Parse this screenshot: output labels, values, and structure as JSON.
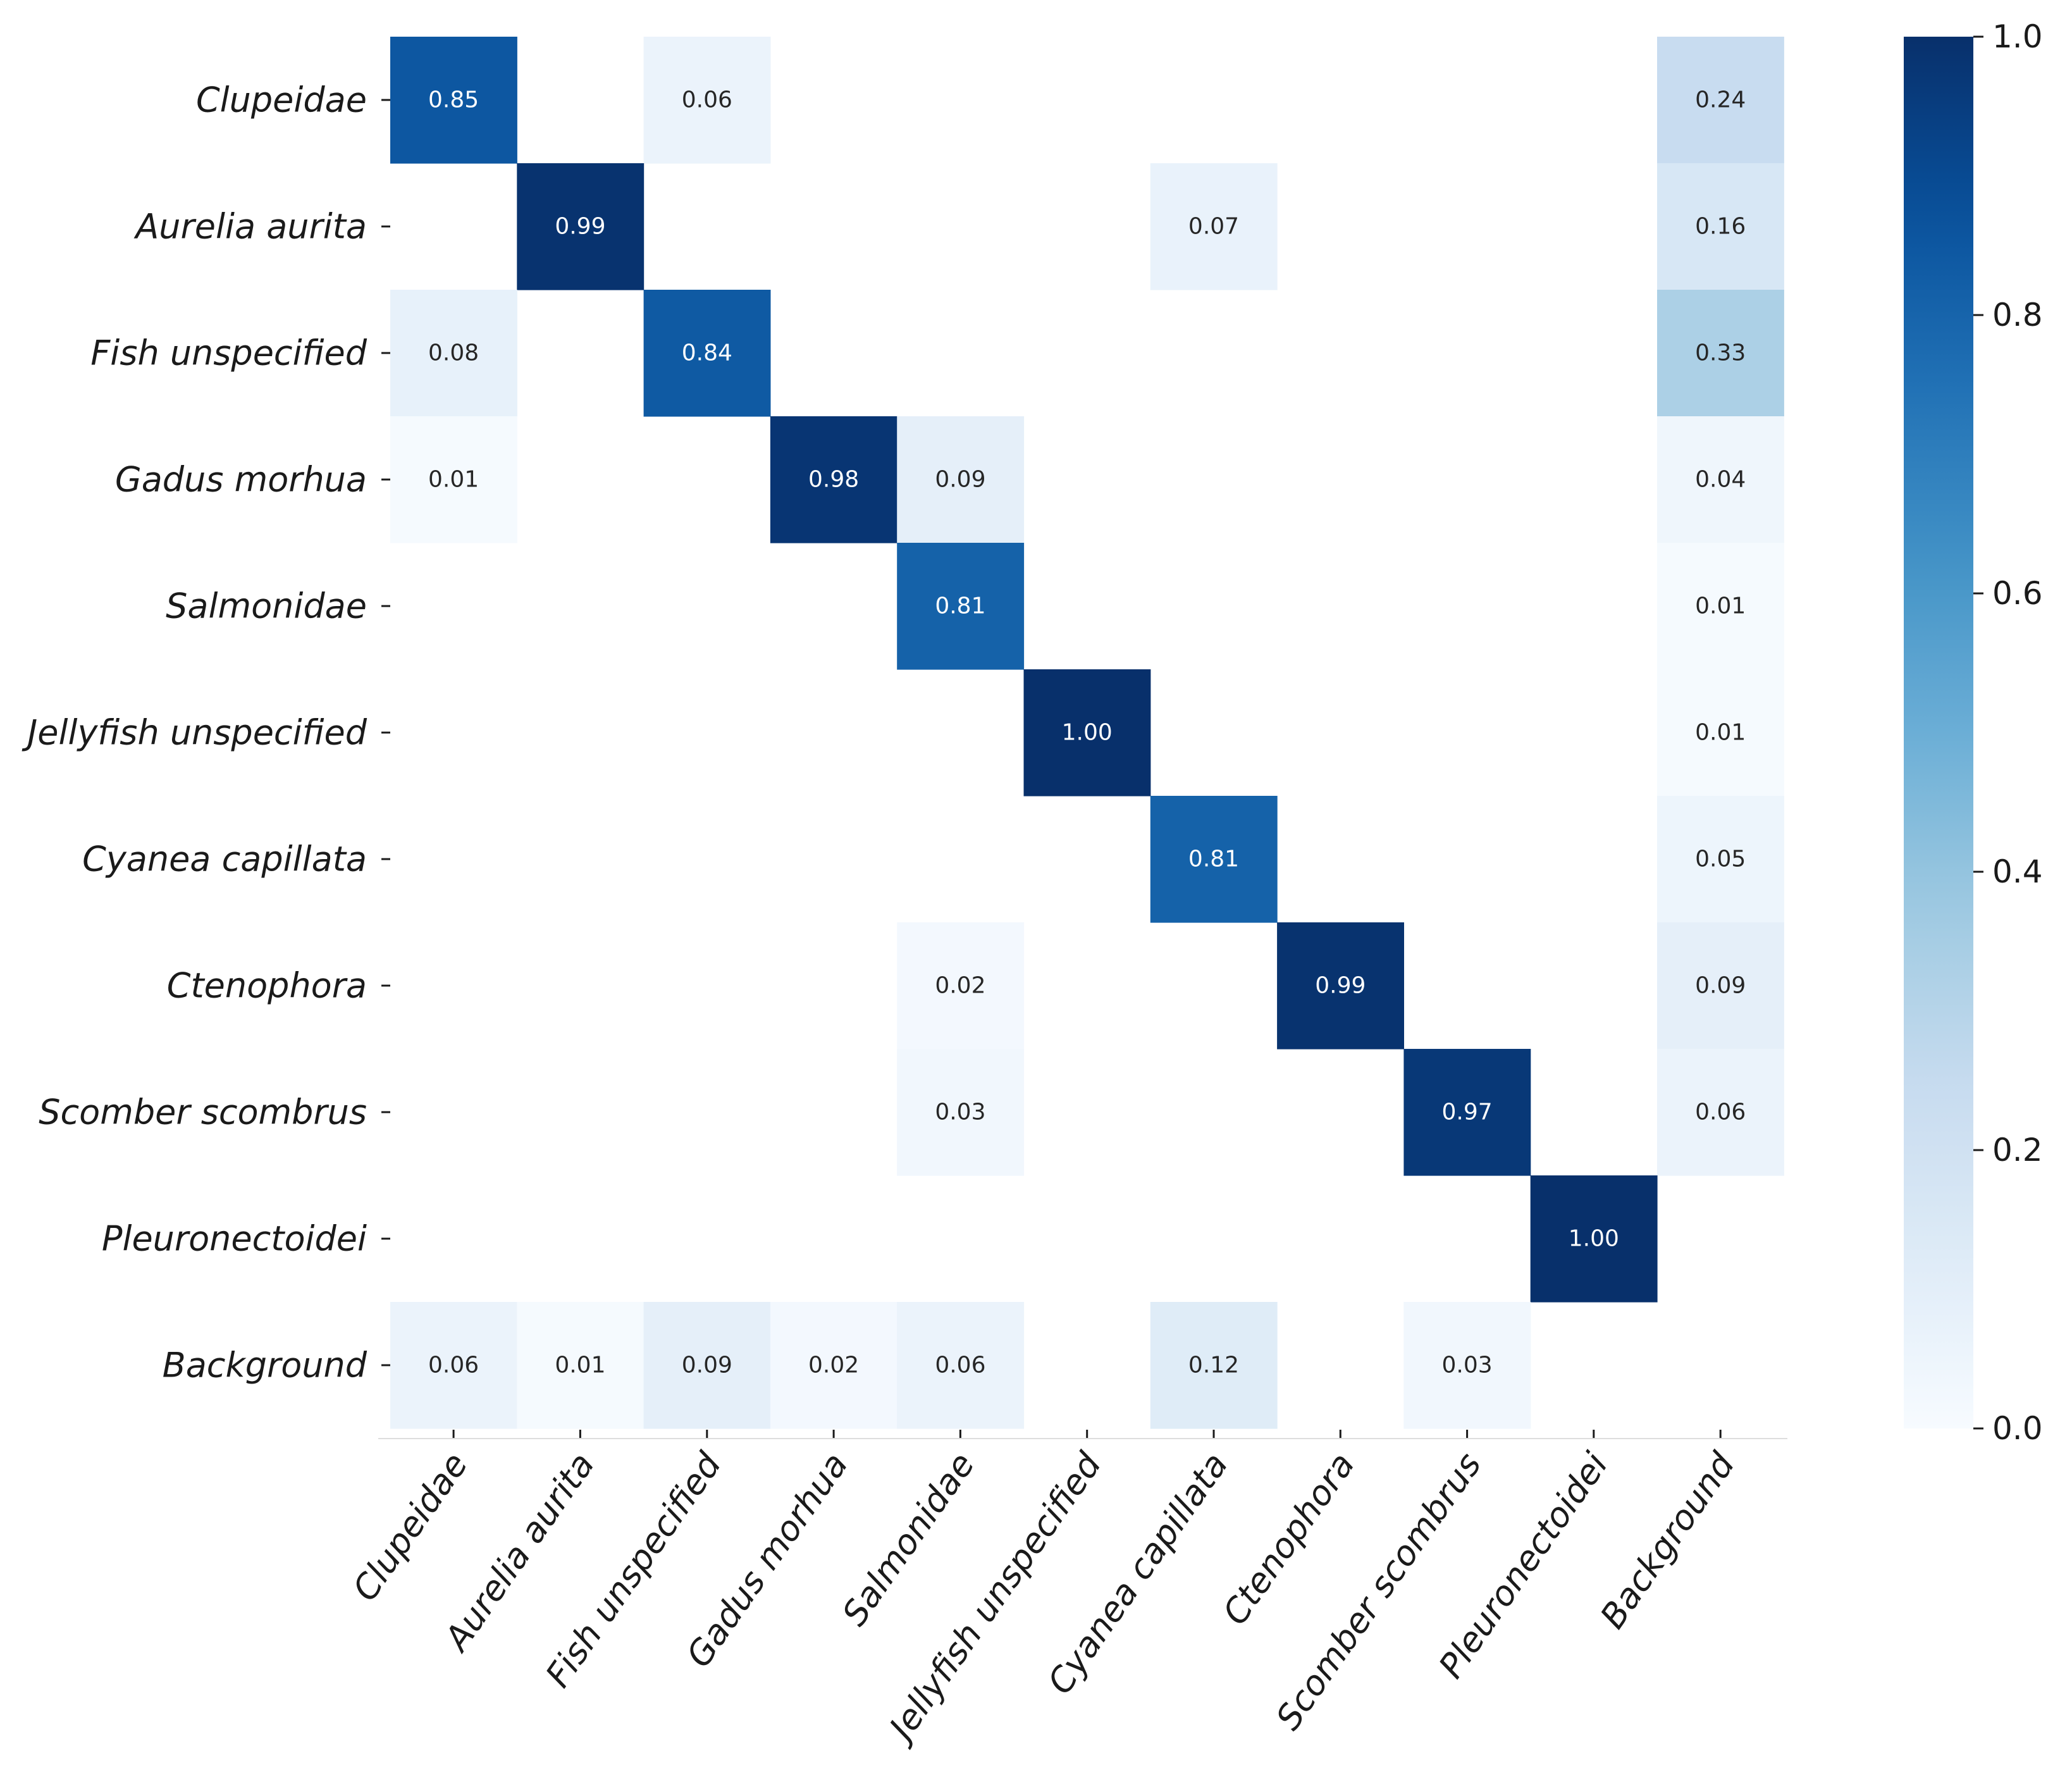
{
  "chart_data": {
    "type": "heatmap",
    "title": "",
    "xlabel": "",
    "ylabel": "",
    "rows": [
      "Clupeidae",
      "Aurelia aurita",
      "Fish unspecified",
      "Gadus morhua",
      "Salmonidae",
      "Jellyfish unspecified",
      "Cyanea capillata",
      "Ctenophora",
      "Scomber scombrus",
      "Pleuronectoidei",
      "Background"
    ],
    "columns": [
      "Clupeidae",
      "Aurelia aurita",
      "Fish unspecified",
      "Gadus morhua",
      "Salmonidae",
      "Jellyfish unspecified",
      "Cyanea capillata",
      "Ctenophora",
      "Scomber scombrus",
      "Pleuronectoidei",
      "Background"
    ],
    "values": [
      [
        0.85,
        null,
        0.06,
        null,
        null,
        null,
        null,
        null,
        null,
        null,
        0.24
      ],
      [
        null,
        0.99,
        null,
        null,
        null,
        null,
        0.07,
        null,
        null,
        null,
        0.16
      ],
      [
        0.08,
        null,
        0.84,
        null,
        null,
        null,
        null,
        null,
        null,
        null,
        0.33
      ],
      [
        0.01,
        null,
        null,
        0.98,
        0.09,
        null,
        null,
        null,
        null,
        null,
        0.04
      ],
      [
        null,
        null,
        null,
        null,
        0.81,
        null,
        null,
        null,
        null,
        null,
        0.01
      ],
      [
        null,
        null,
        null,
        null,
        null,
        1.0,
        null,
        null,
        null,
        null,
        0.01
      ],
      [
        null,
        null,
        null,
        null,
        null,
        null,
        0.81,
        null,
        null,
        null,
        0.05
      ],
      [
        null,
        null,
        null,
        null,
        0.02,
        null,
        null,
        0.99,
        null,
        null,
        0.09
      ],
      [
        null,
        null,
        null,
        null,
        0.03,
        null,
        null,
        null,
        0.97,
        null,
        0.06
      ],
      [
        null,
        null,
        null,
        null,
        null,
        null,
        null,
        null,
        null,
        1.0,
        null
      ],
      [
        0.06,
        0.01,
        0.09,
        0.02,
        0.06,
        null,
        0.12,
        null,
        0.03,
        null,
        null
      ]
    ],
    "value_labels": [
      [
        "0.85",
        null,
        "0.06",
        null,
        null,
        null,
        null,
        null,
        null,
        null,
        "0.24"
      ],
      [
        null,
        "0.99",
        null,
        null,
        null,
        null,
        "0.07",
        null,
        null,
        null,
        "0.16"
      ],
      [
        "0.08",
        null,
        "0.84",
        null,
        null,
        null,
        null,
        null,
        null,
        null,
        "0.33"
      ],
      [
        "0.01",
        null,
        null,
        "0.98",
        "0.09",
        null,
        null,
        null,
        null,
        null,
        "0.04"
      ],
      [
        null,
        null,
        null,
        null,
        "0.81",
        null,
        null,
        null,
        null,
        null,
        "0.01"
      ],
      [
        null,
        null,
        null,
        null,
        null,
        "1.00",
        null,
        null,
        null,
        null,
        "0.01"
      ],
      [
        null,
        null,
        null,
        null,
        null,
        null,
        "0.81",
        null,
        null,
        null,
        "0.05"
      ],
      [
        null,
        null,
        null,
        null,
        "0.02",
        null,
        null,
        "0.99",
        null,
        null,
        "0.09"
      ],
      [
        null,
        null,
        null,
        null,
        "0.03",
        null,
        null,
        null,
        "0.97",
        null,
        "0.06"
      ],
      [
        null,
        null,
        null,
        null,
        null,
        null,
        null,
        null,
        null,
        "1.00",
        null
      ],
      [
        "0.06",
        "0.01",
        "0.09",
        "0.02",
        "0.06",
        null,
        "0.12",
        null,
        "0.03",
        null,
        null
      ]
    ],
    "colormap": "Blues",
    "colorbar": {
      "range": [
        0.0,
        1.0
      ],
      "ticks": [
        0.0,
        0.2,
        0.4,
        0.6,
        0.8,
        1.0
      ],
      "tick_labels": [
        "0.0",
        "0.2",
        "0.4",
        "0.6",
        "0.8",
        "1.0"
      ]
    },
    "colors": {
      "low": "#f7fbff",
      "high": "#08306b",
      "text_dark": "#262626",
      "text_light": "#ffffff"
    }
  }
}
